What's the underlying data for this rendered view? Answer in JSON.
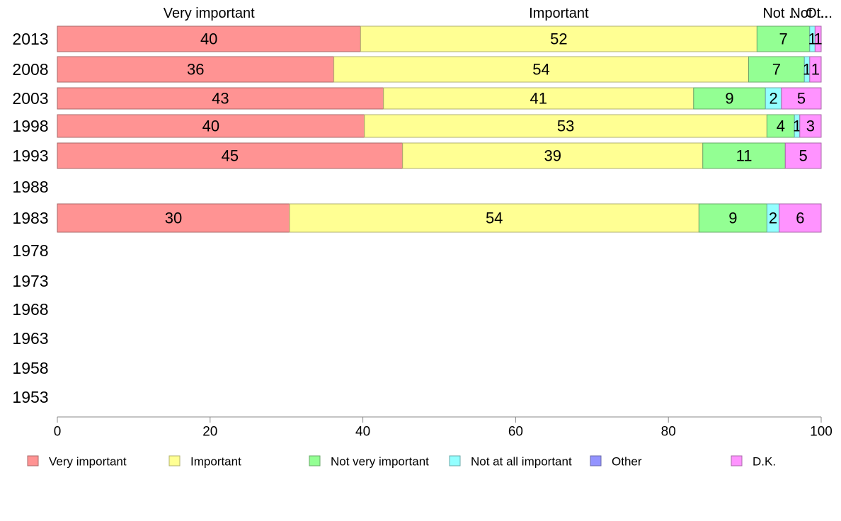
{
  "chart_data": {
    "type": "bar",
    "orientation": "horizontal",
    "stacked": true,
    "categories": [
      "2013",
      "2008",
      "2003",
      "1998",
      "1993",
      "1988",
      "1983",
      "1978",
      "1973",
      "1968",
      "1963",
      "1958",
      "1953"
    ],
    "series": [
      {
        "name": "Very important",
        "color": "#ff9393",
        "values": [
          39.7,
          36.2,
          42.7,
          40.2,
          45.2,
          null,
          30.4,
          null,
          null,
          null,
          null,
          null,
          null
        ],
        "labels": [
          "40",
          "36",
          "43",
          "40",
          "45",
          "",
          "30",
          "",
          "",
          "",
          "",
          "",
          ""
        ]
      },
      {
        "name": "Important",
        "color": "#ffff93",
        "values": [
          51.9,
          54.3,
          40.6,
          52.7,
          39.3,
          null,
          53.6,
          null,
          null,
          null,
          null,
          null,
          null
        ],
        "labels": [
          "52",
          "54",
          "41",
          "53",
          "39",
          "",
          "54",
          "",
          "",
          "",
          "",
          "",
          ""
        ]
      },
      {
        "name": "Not very important",
        "color": "#93ff93",
        "values": [
          6.9,
          7.3,
          9.4,
          3.6,
          10.8,
          null,
          8.9,
          null,
          null,
          null,
          null,
          null,
          null
        ],
        "labels": [
          "7",
          "7",
          "9",
          "4",
          "11",
          "",
          "9",
          "",
          "",
          "",
          "",
          "",
          ""
        ]
      },
      {
        "name": "Not at all important",
        "color": "#93ffff",
        "values": [
          0.7,
          0.7,
          2.1,
          0.7,
          0,
          null,
          1.6,
          null,
          null,
          null,
          null,
          null,
          null
        ],
        "labels": [
          "1",
          "1",
          "2",
          "1",
          "",
          "",
          "2",
          "",
          "",
          "",
          "",
          "",
          ""
        ]
      },
      {
        "name": "Other",
        "color": "#9393ff",
        "values": [
          0,
          0,
          0,
          0,
          0,
          null,
          0,
          null,
          null,
          null,
          null,
          null,
          null
        ],
        "labels": [
          "",
          "",
          "",
          "",
          "",
          "",
          "",
          "",
          "",
          "",
          "",
          "",
          ""
        ]
      },
      {
        "name": "D.K.",
        "color": "#ff93ff",
        "values": [
          0.8,
          1.5,
          5.2,
          2.8,
          4.7,
          null,
          5.5,
          null,
          null,
          null,
          null,
          null,
          null
        ],
        "labels": [
          "1",
          "1",
          "5",
          "3",
          "5",
          "",
          "6",
          "",
          "",
          "",
          "",
          "",
          ""
        ]
      }
    ],
    "top_labels": [
      "Very important",
      "Important",
      "Not ...",
      "Not ...",
      "Ot..."
    ],
    "xlim": [
      0,
      100
    ],
    "x_ticks": [
      0,
      20,
      40,
      60,
      80,
      100
    ],
    "grid": false,
    "legend_position": "bottom"
  }
}
